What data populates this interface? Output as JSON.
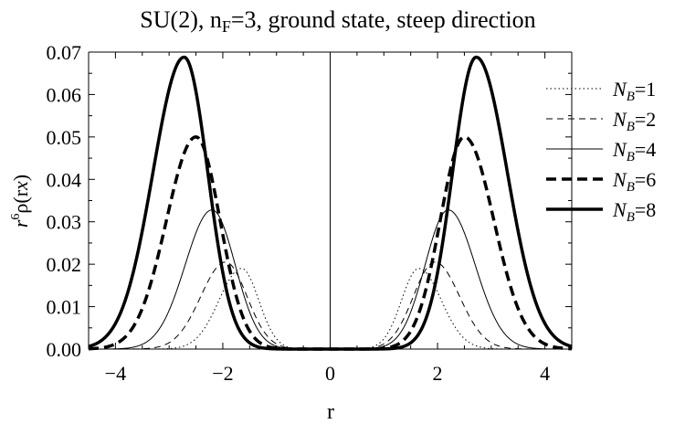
{
  "chart_data": {
    "type": "line",
    "title": "SU(2), n_F=3, ground state, steep direction",
    "title_parts": {
      "pre": "SU(2), n",
      "sub": "F",
      "post": "=3, ground state, steep direction"
    },
    "xlabel": "r",
    "ylabel": "r^6 ρ(r x̂)",
    "ylabel_parts": {
      "base": "r",
      "sup": "6",
      "rest": "ρ(r",
      "hat": "x",
      "close": ")"
    },
    "xlim": [
      -4.5,
      4.5
    ],
    "ylim": [
      0,
      0.07
    ],
    "x_ticks": [
      -4,
      -2,
      0,
      2,
      4
    ],
    "x_tick_labels": [
      "−4",
      "−2",
      "0",
      "2",
      "4"
    ],
    "y_ticks": [
      0,
      0.01,
      0.02,
      0.03,
      0.04,
      0.05,
      0.06,
      0.07
    ],
    "y_tick_labels": [
      "0.00",
      "0.01",
      "0.02",
      "0.03",
      "0.04",
      "0.05",
      "0.06",
      "0.07"
    ],
    "grid": false,
    "legend_position": "right",
    "series": [
      {
        "name": "N_B=1",
        "label_base": "N",
        "label_sub": "B",
        "label_value": "=1",
        "style": "dotted",
        "width": 1.0,
        "color": "#000000",
        "peak_x": 1.65,
        "peak_y": 0.019,
        "sigma_in": 0.32,
        "sigma_out": 0.42,
        "points": [
          [
            0.8,
            0.0007
          ],
          [
            1.2,
            0.0087
          ],
          [
            1.65,
            0.019
          ],
          [
            2.0,
            0.0136
          ],
          [
            2.5,
            0.0025
          ],
          [
            3.0,
            0.0002
          ]
        ]
      },
      {
        "name": "N_B=2",
        "label_base": "N",
        "label_sub": "B",
        "label_value": "=2",
        "style": "dashed-fine",
        "width": 1.0,
        "color": "#000000",
        "peak_x": 1.95,
        "peak_y": 0.0205,
        "sigma_in": 0.4,
        "sigma_out": 0.46,
        "points": [
          [
            0.8,
            0.0003
          ],
          [
            1.5,
            0.0107
          ],
          [
            1.95,
            0.0205
          ],
          [
            2.5,
            0.0099
          ],
          [
            3.0,
            0.0016
          ],
          [
            3.5,
            0.0001
          ]
        ]
      },
      {
        "name": "N_B=4",
        "label_base": "N",
        "label_sub": "B",
        "label_value": "=4",
        "style": "solid",
        "width": 1.0,
        "color": "#000000",
        "peak_x": 2.2,
        "peak_y": 0.0328,
        "sigma_in": 0.43,
        "sigma_out": 0.5,
        "points": [
          [
            1.0,
            0.0007
          ],
          [
            1.7,
            0.016
          ],
          [
            2.2,
            0.0328
          ],
          [
            2.7,
            0.0198
          ],
          [
            3.3,
            0.0044
          ],
          [
            4.0,
            0.0002
          ]
        ]
      },
      {
        "name": "N_B=6",
        "label_base": "N",
        "label_sub": "B",
        "label_value": "=6",
        "style": "dashed-bold",
        "width": 3.5,
        "color": "#000000",
        "peak_x": 2.5,
        "peak_y": 0.05,
        "sigma_in": 0.45,
        "sigma_out": 0.55,
        "points": [
          [
            1.2,
            0.0008
          ],
          [
            2.0,
            0.0269
          ],
          [
            2.5,
            0.05
          ],
          [
            3.0,
            0.0331
          ],
          [
            3.6,
            0.0068
          ],
          [
            4.4,
            0.0002
          ]
        ]
      },
      {
        "name": "N_B=8",
        "label_base": "N",
        "label_sub": "B",
        "label_value": "=8",
        "style": "solid-bold",
        "width": 3.5,
        "color": "#000000",
        "peak_x": 2.72,
        "peak_y": 0.0688,
        "sigma_in": 0.44,
        "sigma_out": 0.58,
        "points": [
          [
            1.5,
            0.0016
          ],
          [
            2.2,
            0.0343
          ],
          [
            2.72,
            0.0688
          ],
          [
            3.2,
            0.0487
          ],
          [
            3.9,
            0.0086
          ],
          [
            4.5,
            0.0006
          ]
        ]
      }
    ]
  }
}
